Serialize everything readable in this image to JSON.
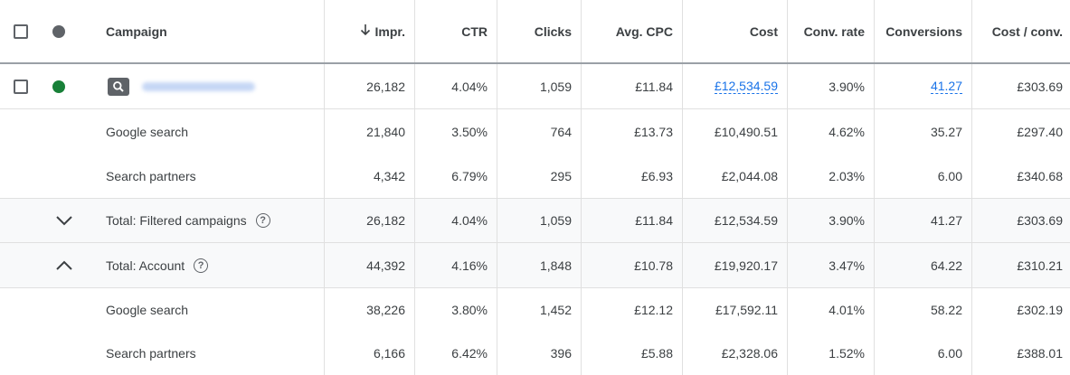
{
  "columns": {
    "campaign": "Campaign",
    "impr": "Impr.",
    "ctr": "CTR",
    "clicks": "Clicks",
    "avg_cpc": "Avg. CPC",
    "cost": "Cost",
    "conv_rate": "Conv. rate",
    "conversions": "Conversions",
    "cost_per_conv": "Cost / conv."
  },
  "sort_icon": "arrow-downward-icon",
  "colors": {
    "enabled_status": "#188038",
    "link": "#1a73e8",
    "header_dot": "#5f6368"
  },
  "campaign_row": {
    "icon": "search-campaign-icon",
    "values": {
      "impr": "26,182",
      "ctr": "4.04%",
      "clicks": "1,059",
      "avg_cpc": "£11.84",
      "cost": "£12,534.59",
      "conv_rate": "3.90%",
      "conversions": "41.27",
      "cost_per_conv": "£303.69"
    }
  },
  "rows": [
    {
      "label": "Google search",
      "values": {
        "impr": "21,840",
        "ctr": "3.50%",
        "clicks": "764",
        "avg_cpc": "£13.73",
        "cost": "£10,490.51",
        "conv_rate": "4.62%",
        "conversions": "35.27",
        "cost_per_conv": "£297.40"
      }
    },
    {
      "label": "Search partners",
      "values": {
        "impr": "4,342",
        "ctr": "6.79%",
        "clicks": "295",
        "avg_cpc": "£6.93",
        "cost": "£2,044.08",
        "conv_rate": "2.03%",
        "conversions": "6.00",
        "cost_per_conv": "£340.68"
      }
    },
    {
      "label": "Total: Filtered campaigns",
      "expand_icon": "chevron-down-icon",
      "values": {
        "impr": "26,182",
        "ctr": "4.04%",
        "clicks": "1,059",
        "avg_cpc": "£11.84",
        "cost": "£12,534.59",
        "conv_rate": "3.90%",
        "conversions": "41.27",
        "cost_per_conv": "£303.69"
      }
    },
    {
      "label": "Total: Account",
      "expand_icon": "chevron-up-icon",
      "values": {
        "impr": "44,392",
        "ctr": "4.16%",
        "clicks": "1,848",
        "avg_cpc": "£10.78",
        "cost": "£19,920.17",
        "conv_rate": "3.47%",
        "conversions": "64.22",
        "cost_per_conv": "£310.21"
      }
    },
    {
      "label": "Google search",
      "values": {
        "impr": "38,226",
        "ctr": "3.80%",
        "clicks": "1,452",
        "avg_cpc": "£12.12",
        "cost": "£17,592.11",
        "conv_rate": "4.01%",
        "conversions": "58.22",
        "cost_per_conv": "£302.19"
      }
    },
    {
      "label": "Search partners",
      "values": {
        "impr": "6,166",
        "ctr": "6.42%",
        "clicks": "396",
        "avg_cpc": "£5.88",
        "cost": "£2,328.06",
        "conv_rate": "1.52%",
        "conversions": "6.00",
        "cost_per_conv": "£388.01"
      }
    }
  ]
}
